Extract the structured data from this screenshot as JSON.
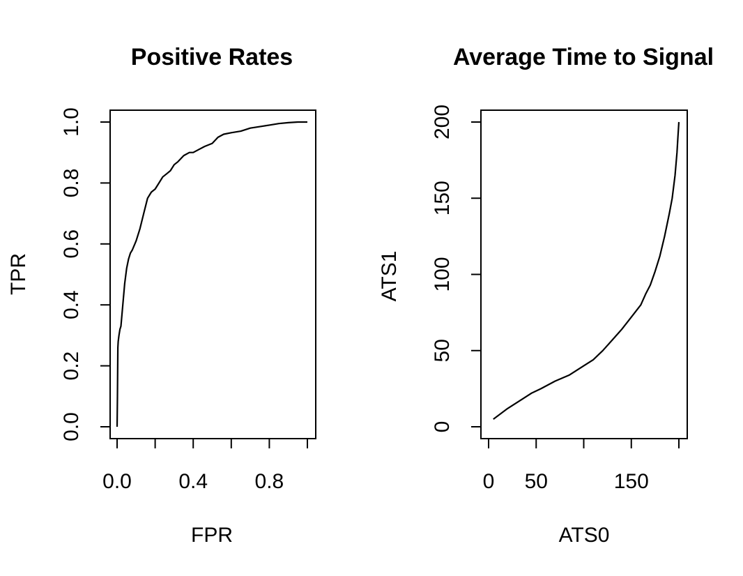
{
  "chart_data": [
    {
      "type": "line",
      "title": "Positive Rates",
      "xlabel": "FPR",
      "ylabel": "TPR",
      "xlim": [
        0,
        1
      ],
      "ylim": [
        0,
        1
      ],
      "x_ticks": [
        0,
        0.2,
        0.4,
        0.6,
        0.8,
        1.0
      ],
      "x_tick_labels": [
        "0.0",
        "",
        "0.4",
        "",
        "0.8",
        ""
      ],
      "y_ticks": [
        0,
        0.2,
        0.4,
        0.6,
        0.8,
        1.0
      ],
      "y_tick_labels": [
        "0.0",
        "0.2",
        "0.4",
        "0.6",
        "0.8",
        "1.0"
      ],
      "grid": false,
      "series": [
        {
          "x": [
            0.0,
            0.002,
            0.004,
            0.006,
            0.01,
            0.015,
            0.02,
            0.03,
            0.04,
            0.05,
            0.06,
            0.07,
            0.08,
            0.1,
            0.12,
            0.14,
            0.16,
            0.18,
            0.2,
            0.22,
            0.24,
            0.26,
            0.28,
            0.3,
            0.32,
            0.35,
            0.38,
            0.4,
            0.43,
            0.46,
            0.5,
            0.53,
            0.56,
            0.6,
            0.65,
            0.7,
            0.75,
            0.8,
            0.85,
            0.9,
            0.95,
            1.0
          ],
          "y": [
            0.0,
            0.1,
            0.26,
            0.28,
            0.3,
            0.32,
            0.33,
            0.4,
            0.47,
            0.52,
            0.55,
            0.57,
            0.58,
            0.61,
            0.65,
            0.7,
            0.75,
            0.77,
            0.78,
            0.8,
            0.82,
            0.83,
            0.84,
            0.86,
            0.87,
            0.89,
            0.9,
            0.9,
            0.91,
            0.92,
            0.93,
            0.95,
            0.96,
            0.965,
            0.97,
            0.98,
            0.985,
            0.99,
            0.995,
            0.998,
            1.0,
            1.0
          ]
        }
      ]
    },
    {
      "type": "line",
      "title": "Average Time to Signal",
      "xlabel": "ATS0",
      "ylabel": "ATS1",
      "xlim": [
        0,
        200
      ],
      "ylim": [
        0,
        200
      ],
      "x_ticks": [
        0,
        50,
        100,
        150,
        200
      ],
      "x_tick_labels": [
        "0",
        "50",
        "",
        "150",
        ""
      ],
      "y_ticks": [
        0,
        50,
        100,
        150,
        200
      ],
      "y_tick_labels": [
        "0",
        "50",
        "100",
        "150",
        "200"
      ],
      "grid": false,
      "series": [
        {
          "x": [
            5,
            20,
            35,
            45,
            55,
            70,
            85,
            100,
            110,
            120,
            130,
            140,
            150,
            160,
            165,
            170,
            175,
            180,
            185,
            190,
            193,
            196,
            198,
            199,
            200
          ],
          "y": [
            5,
            12,
            18,
            22,
            25,
            30,
            34,
            40,
            44,
            50,
            57,
            64,
            72,
            80,
            87,
            93,
            102,
            112,
            125,
            140,
            150,
            165,
            180,
            190,
            200
          ]
        }
      ]
    }
  ]
}
